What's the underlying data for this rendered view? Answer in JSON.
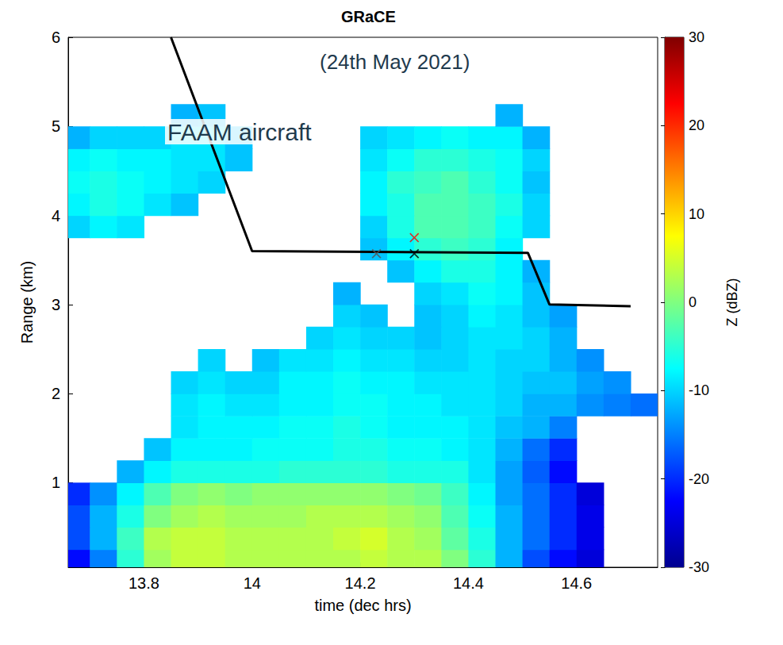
{
  "chart_data": {
    "type": "heatmap",
    "title": "GRaCE",
    "subtitle": "(24th May 2021)",
    "x_label": "time (dec hrs)",
    "y_label": "Range (km)",
    "xlim": [
      13.66,
      14.75
    ],
    "xticks": [
      13.8,
      14,
      14.2,
      14.4,
      14.6
    ],
    "ylim": [
      0.05,
      6
    ],
    "yticks": [
      1,
      2,
      3,
      4,
      5,
      6
    ],
    "grid": false,
    "cells": {
      "x": [
        13.675,
        13.725,
        13.775,
        13.825,
        13.875,
        13.925,
        13.975,
        14.025,
        14.075,
        14.125,
        14.175,
        14.225,
        14.275,
        14.325,
        14.375,
        14.425,
        14.475,
        14.525,
        14.575,
        14.625,
        14.675,
        14.725
      ],
      "y": [
        0.125,
        0.375,
        0.625,
        0.875,
        1.125,
        1.375,
        1.625,
        1.875,
        2.125,
        2.375,
        2.625,
        2.875,
        3.125,
        3.375,
        3.625,
        3.875,
        4.125,
        4.375,
        4.625,
        4.875,
        5.125,
        5.375,
        5.625,
        5.875
      ],
      "z": [
        [
          -22,
          -15,
          -5,
          2,
          4,
          4,
          3,
          3,
          3,
          3,
          3,
          4,
          3,
          3,
          0,
          -5,
          -12,
          -18,
          -22,
          -25,
          null,
          null
        ],
        [
          -18,
          -12,
          -4,
          3,
          4,
          4,
          3,
          3,
          3,
          3,
          4,
          5,
          3,
          2,
          -2,
          -6,
          -12,
          -16,
          -20,
          -24,
          null,
          null
        ],
        [
          -18,
          -12,
          -6,
          0,
          2,
          3,
          2,
          2,
          2,
          3,
          3,
          3,
          2,
          1,
          -3,
          -7,
          -12,
          -16,
          -20,
          -24,
          null,
          null
        ],
        [
          -20,
          -14,
          -8,
          -3,
          0,
          1,
          0,
          1,
          1,
          1,
          1,
          1,
          0,
          -1,
          -4,
          -8,
          -13,
          -16,
          -20,
          -25,
          null,
          null
        ],
        [
          null,
          null,
          -12,
          -8,
          -6,
          -6,
          -6,
          -6,
          -5,
          -5,
          -5,
          -5,
          -6,
          -6,
          -6,
          -9,
          -13,
          -17,
          -22,
          null,
          null,
          null
        ],
        [
          null,
          null,
          null,
          -11,
          -8,
          -8,
          -8,
          -7,
          -7,
          -7,
          -6,
          -6,
          -7,
          -7,
          -8,
          -9,
          -12,
          -16,
          -20,
          null,
          null,
          null
        ],
        [
          null,
          null,
          null,
          null,
          -9,
          -8,
          -8,
          -8,
          -7,
          -7,
          -6,
          -7,
          -8,
          -8,
          -8,
          -9,
          -11,
          -12,
          -15,
          null,
          null,
          null
        ],
        [
          null,
          null,
          null,
          null,
          -9,
          -8,
          -9,
          -9,
          -8,
          -8,
          -7,
          -7,
          -8,
          -8,
          -9,
          -9,
          -10,
          -12,
          -12,
          -14,
          -15,
          -16
        ],
        [
          null,
          null,
          null,
          null,
          -10,
          -9,
          -10,
          -10,
          -8,
          -8,
          -7,
          -8,
          -8,
          -9,
          -9,
          -9,
          -10,
          -11,
          -11,
          -13,
          -14,
          null
        ],
        [
          null,
          null,
          null,
          null,
          null,
          -10,
          null,
          -11,
          -9,
          -9,
          -8,
          -9,
          -9,
          -10,
          -10,
          -9,
          -10,
          -10,
          -12,
          -14,
          null,
          null
        ],
        [
          null,
          null,
          null,
          null,
          null,
          null,
          null,
          null,
          null,
          -10,
          -9,
          -10,
          -10,
          -11,
          -10,
          -9,
          -9,
          -10,
          -12,
          null,
          null,
          null
        ],
        [
          null,
          null,
          null,
          null,
          null,
          null,
          null,
          null,
          null,
          null,
          -10,
          -11,
          null,
          -11,
          -10,
          -8,
          -9,
          -11,
          -13,
          null,
          null,
          null
        ],
        [
          null,
          null,
          null,
          null,
          null,
          null,
          null,
          null,
          null,
          null,
          -12,
          null,
          null,
          -10,
          -9,
          -7,
          -8,
          -11,
          null,
          null,
          null,
          null
        ],
        [
          null,
          null,
          null,
          null,
          null,
          null,
          null,
          null,
          null,
          null,
          null,
          null,
          -11,
          -8,
          -6,
          -6,
          -8,
          -12,
          null,
          null,
          null,
          null
        ],
        [
          null,
          null,
          null,
          null,
          null,
          null,
          null,
          null,
          null,
          null,
          null,
          -11,
          -8,
          -5,
          -4,
          -5,
          -8,
          null,
          null,
          null,
          null,
          null
        ],
        [
          -10,
          -8,
          -9,
          null,
          null,
          null,
          null,
          null,
          null,
          null,
          null,
          -10,
          -6,
          -3,
          -3,
          -4,
          -7,
          -10,
          null,
          null,
          null,
          null
        ],
        [
          -8,
          -6,
          -7,
          -9,
          -11,
          null,
          null,
          null,
          null,
          null,
          null,
          -8,
          -6,
          -3,
          -3,
          -4,
          -6,
          -10,
          null,
          null,
          null,
          null
        ],
        [
          -7,
          -6,
          -7,
          -8,
          -9,
          -10,
          null,
          null,
          null,
          null,
          null,
          -8,
          -5,
          -4,
          -3,
          -5,
          -7,
          -11,
          null,
          null,
          null,
          null
        ],
        [
          -8,
          -7,
          -8,
          -8,
          -9,
          -9,
          -11,
          null,
          null,
          null,
          null,
          -9,
          -7,
          -5,
          -5,
          -6,
          -7,
          -10,
          null,
          null,
          null,
          null
        ],
        [
          -12,
          -10,
          -10,
          -10,
          -9,
          -9,
          -11,
          null,
          null,
          null,
          null,
          -10,
          -9,
          -8,
          -7,
          -8,
          -8,
          -12,
          null,
          null,
          null,
          null
        ],
        [
          null,
          null,
          null,
          null,
          -12,
          -11,
          null,
          null,
          null,
          null,
          null,
          null,
          null,
          null,
          null,
          null,
          -12,
          null,
          null,
          null,
          null,
          null
        ],
        [
          null,
          null,
          null,
          null,
          null,
          null,
          null,
          null,
          null,
          null,
          null,
          null,
          null,
          null,
          null,
          null,
          null,
          null,
          null,
          null,
          null,
          null
        ],
        [
          null,
          null,
          null,
          null,
          null,
          null,
          null,
          null,
          null,
          null,
          null,
          null,
          null,
          null,
          null,
          null,
          null,
          null,
          null,
          null,
          null,
          null
        ],
        [
          null,
          null,
          null,
          null,
          null,
          null,
          null,
          null,
          null,
          null,
          null,
          null,
          null,
          null,
          null,
          null,
          null,
          null,
          null,
          null,
          null,
          null
        ]
      ]
    },
    "colorbar": {
      "label": "Z (dBZ)",
      "zlim": [
        -30,
        30
      ],
      "zticks": [
        -30,
        -20,
        -10,
        0,
        10,
        20,
        30
      ]
    },
    "series": [
      {
        "name": "FAAM aircraft",
        "type": "line",
        "color": "#000000",
        "x": [
          13.85,
          14.0,
          14.51,
          14.55,
          14.7
        ],
        "values": [
          6.0,
          3.6,
          3.58,
          3.0,
          2.98
        ]
      }
    ],
    "markers": [
      {
        "x": 14.23,
        "y": 3.57,
        "color": "#555555",
        "marker": "x"
      },
      {
        "x": 14.3,
        "y": 3.57,
        "color": "#000000",
        "marker": "x"
      },
      {
        "x": 14.3,
        "y": 3.75,
        "color": "#ff0000",
        "marker": "x"
      }
    ]
  }
}
